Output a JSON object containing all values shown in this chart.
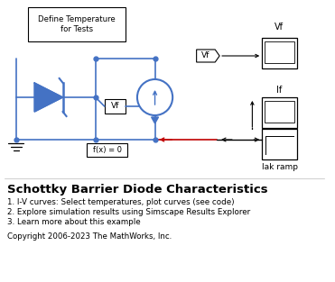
{
  "title": "Schottky Barrier Diode Characteristics",
  "bullet1": "1. I-V curves: Select temperatures, plot curves (see code)",
  "bullet2": "2. Explore simulation results using Simscape Results Explorer",
  "bullet3": "3. Learn more about this example",
  "copyright": "Copyright 2006-2023 The MathWorks, Inc.",
  "bg_color": "#ffffff",
  "blue": "#4472c4",
  "red": "#c00000",
  "black": "#000000",
  "label_define": "Define Temperature\nfor Tests",
  "label_vf": "Vf",
  "label_if": "If",
  "label_iakramp": "Iak ramp",
  "label_fx": "f(x) = 0",
  "figw": 3.71,
  "figh": 3.13,
  "dpi": 100
}
